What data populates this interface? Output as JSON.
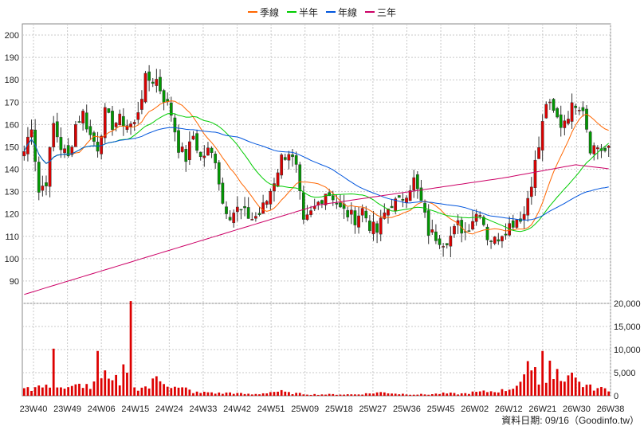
{
  "chart_data": {
    "type": "candlestick",
    "legend": [
      {
        "name": "季線",
        "color": "#ff6600"
      },
      {
        "name": "半年",
        "color": "#00cc00"
      },
      {
        "name": "年線",
        "color": "#0055dd"
      },
      {
        "name": "三年",
        "color": "#cc0066"
      }
    ],
    "price_axis": {
      "min": 80,
      "max": 205,
      "ticks": [
        90,
        100,
        110,
        120,
        130,
        140,
        150,
        160,
        170,
        180,
        190,
        200
      ]
    },
    "volume_axis": {
      "min": 0,
      "max": 20000,
      "ticks": [
        "0",
        "5,000",
        "10,000",
        "15,000",
        "20,000"
      ]
    },
    "x_labels": [
      "23W40",
      "23W49",
      "24W06",
      "24W15",
      "24W24",
      "24W33",
      "24W42",
      "24W51",
      "25W09",
      "25W18",
      "25W27",
      "25W36",
      "25W45",
      "26W02",
      "26W12",
      "26W21",
      "26W30",
      "26W38"
    ],
    "price_anchors": [
      [
        0,
        148
      ],
      [
        2,
        160
      ],
      [
        4,
        130
      ],
      [
        6,
        135
      ],
      [
        8,
        160
      ],
      [
        10,
        150
      ],
      [
        12,
        145
      ],
      [
        14,
        160
      ],
      [
        16,
        165
      ],
      [
        18,
        155
      ],
      [
        20,
        150
      ],
      [
        22,
        165
      ],
      [
        24,
        160
      ],
      [
        26,
        162
      ],
      [
        28,
        160
      ],
      [
        30,
        160
      ],
      [
        33,
        180
      ],
      [
        36,
        180
      ],
      [
        38,
        172
      ],
      [
        40,
        165
      ],
      [
        42,
        150
      ],
      [
        44,
        145
      ],
      [
        46,
        155
      ],
      [
        48,
        145
      ],
      [
        50,
        148
      ],
      [
        52,
        145
      ],
      [
        54,
        125
      ],
      [
        56,
        120
      ],
      [
        58,
        122
      ],
      [
        60,
        120
      ],
      [
        62,
        118
      ],
      [
        64,
        120
      ],
      [
        66,
        126
      ],
      [
        68,
        135
      ],
      [
        70,
        145
      ],
      [
        72,
        148
      ],
      [
        74,
        140
      ],
      [
        76,
        115
      ],
      [
        78,
        120
      ],
      [
        80,
        125
      ],
      [
        82,
        130
      ],
      [
        84,
        128
      ],
      [
        86,
        122
      ],
      [
        88,
        120
      ],
      [
        90,
        118
      ],
      [
        92,
        122
      ],
      [
        94,
        115
      ],
      [
        96,
        112
      ],
      [
        98,
        120
      ],
      [
        100,
        125
      ],
      [
        102,
        125
      ],
      [
        104,
        130
      ],
      [
        106,
        135
      ],
      [
        108,
        125
      ],
      [
        110,
        112
      ],
      [
        112,
        110
      ],
      [
        114,
        108
      ],
      [
        116,
        110
      ],
      [
        118,
        115
      ],
      [
        120,
        112
      ],
      [
        122,
        118
      ],
      [
        124,
        122
      ],
      [
        126,
        110
      ],
      [
        128,
        108
      ],
      [
        130,
        112
      ],
      [
        132,
        115
      ],
      [
        134,
        118
      ],
      [
        136,
        120
      ],
      [
        138,
        135
      ],
      [
        140,
        150
      ],
      [
        142,
        170
      ],
      [
        144,
        165
      ],
      [
        146,
        160
      ],
      [
        148,
        165
      ],
      [
        150,
        170
      ],
      [
        152,
        168
      ],
      [
        154,
        150
      ],
      [
        156,
        150
      ],
      [
        158,
        148
      ]
    ],
    "volume_anchors": [
      [
        0,
        2500
      ],
      [
        2,
        1500
      ],
      [
        4,
        2000
      ],
      [
        6,
        1800
      ],
      [
        8,
        3000
      ],
      [
        10,
        1800
      ],
      [
        12,
        1500
      ],
      [
        14,
        2000
      ],
      [
        16,
        2500
      ],
      [
        18,
        1800
      ],
      [
        20,
        2800
      ],
      [
        22,
        4000
      ],
      [
        24,
        2500
      ],
      [
        26,
        3000
      ],
      [
        28,
        2200
      ],
      [
        30,
        1500
      ],
      [
        32,
        2000
      ],
      [
        34,
        1800
      ],
      [
        36,
        4000
      ],
      [
        38,
        3500
      ],
      [
        40,
        2000
      ],
      [
        42,
        1500
      ],
      [
        44,
        1500
      ],
      [
        46,
        800
      ],
      [
        48,
        600
      ],
      [
        50,
        800
      ],
      [
        52,
        600
      ],
      [
        54,
        500
      ],
      [
        56,
        700
      ],
      [
        58,
        500
      ],
      [
        60,
        400
      ],
      [
        62,
        300
      ],
      [
        64,
        400
      ],
      [
        66,
        700
      ],
      [
        68,
        900
      ],
      [
        70,
        900
      ],
      [
        72,
        600
      ],
      [
        74,
        500
      ],
      [
        76,
        400
      ],
      [
        78,
        300
      ],
      [
        80,
        300
      ],
      [
        82,
        300
      ],
      [
        84,
        300
      ],
      [
        86,
        300
      ],
      [
        88,
        300
      ],
      [
        90,
        300
      ],
      [
        92,
        400
      ],
      [
        94,
        500
      ],
      [
        96,
        700
      ],
      [
        98,
        700
      ],
      [
        100,
        600
      ],
      [
        102,
        400
      ],
      [
        104,
        400
      ],
      [
        106,
        300
      ],
      [
        108,
        300
      ],
      [
        110,
        300
      ],
      [
        112,
        400
      ],
      [
        114,
        500
      ],
      [
        116,
        500
      ],
      [
        118,
        400
      ],
      [
        120,
        500
      ],
      [
        122,
        700
      ],
      [
        124,
        800
      ],
      [
        126,
        900
      ],
      [
        128,
        1000
      ],
      [
        130,
        1100
      ],
      [
        132,
        1500
      ],
      [
        134,
        2500
      ],
      [
        136,
        3500
      ],
      [
        138,
        4000
      ],
      [
        140,
        4000
      ],
      [
        142,
        3000
      ],
      [
        144,
        3500
      ],
      [
        146,
        4000
      ],
      [
        148,
        4500
      ],
      [
        150,
        3500
      ],
      [
        152,
        2500
      ],
      [
        154,
        1800
      ],
      [
        156,
        1500
      ],
      [
        158,
        1500
      ]
    ],
    "volume_spikes": [
      [
        8,
        10200
      ],
      [
        20,
        9700
      ],
      [
        29,
        20500
      ],
      [
        27,
        6800
      ],
      [
        28,
        5000
      ],
      [
        25,
        4500
      ],
      [
        141,
        9700
      ],
      [
        137,
        7500
      ],
      [
        143,
        7600
      ],
      [
        139,
        6200
      ],
      [
        145,
        5800
      ],
      [
        149,
        5000
      ]
    ]
  },
  "credit": "資料日期: 09/16（Goodinfo.tw）"
}
